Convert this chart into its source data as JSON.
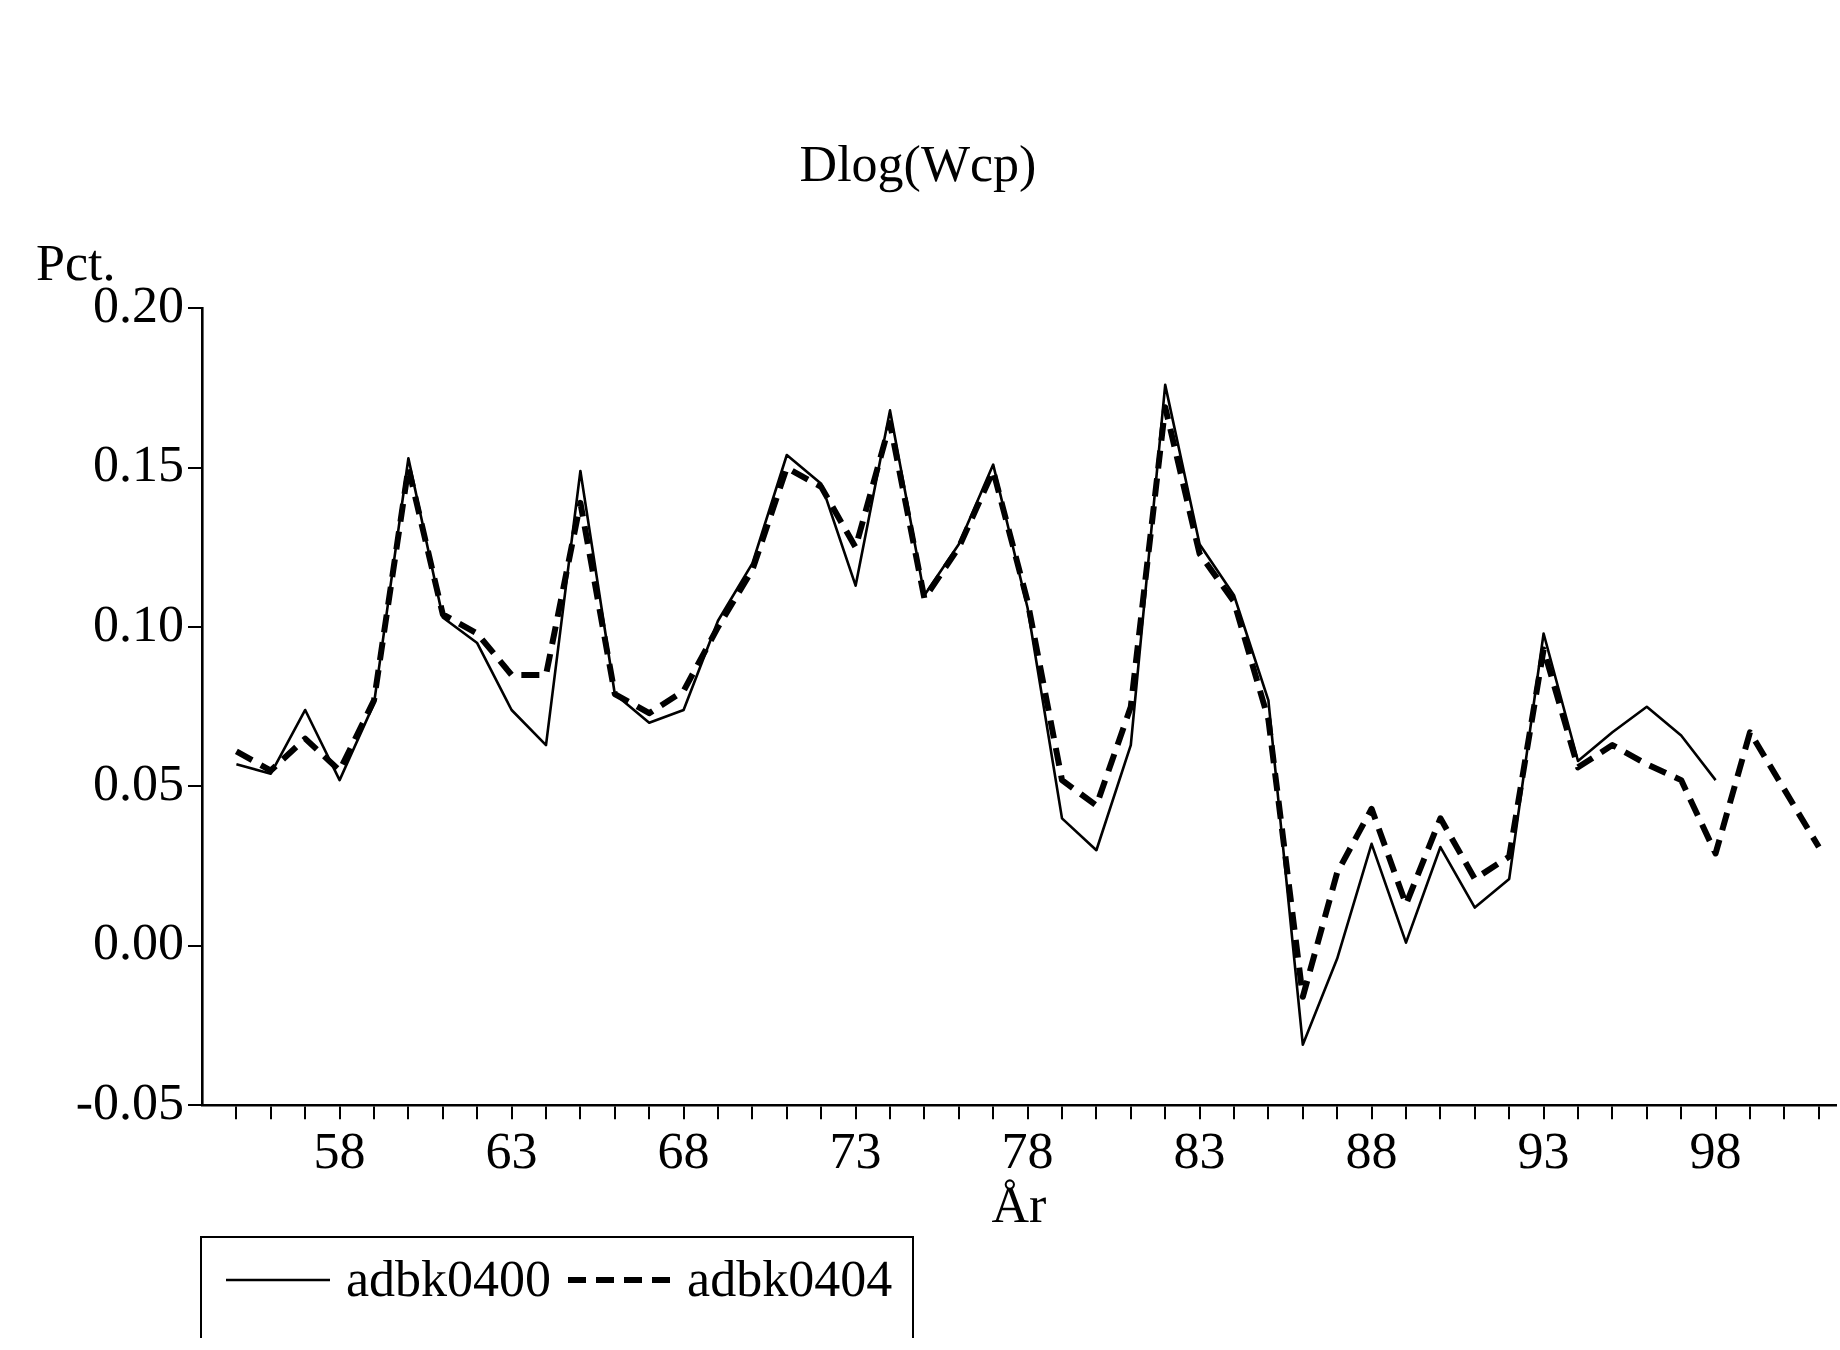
{
  "chart_data": {
    "type": "line",
    "title": "Dlog(Wcp)",
    "xlabel": "År",
    "ylabel": "Pct.",
    "x": [
      55,
      56,
      57,
      58,
      59,
      60,
      61,
      62,
      63,
      64,
      65,
      66,
      67,
      68,
      69,
      70,
      71,
      72,
      73,
      74,
      75,
      76,
      77,
      78,
      79,
      80,
      81,
      82,
      83,
      84,
      85,
      86,
      87,
      88,
      89,
      90,
      91,
      92,
      93,
      94,
      95,
      96,
      97,
      98,
      99,
      100,
      101
    ],
    "series": [
      {
        "name": "adbk0400",
        "color": "#000000",
        "line_style": "solid",
        "values": [
          0.057,
          0.054,
          0.074,
          0.052,
          0.076,
          0.153,
          0.103,
          0.095,
          0.074,
          0.063,
          0.149,
          0.079,
          0.07,
          0.074,
          0.102,
          0.12,
          0.154,
          0.145,
          0.113,
          0.168,
          0.11,
          0.126,
          0.151,
          0.106,
          0.04,
          0.03,
          0.063,
          0.176,
          0.126,
          0.11,
          0.077,
          -0.031,
          -0.004,
          0.032,
          0.001,
          0.031,
          0.012,
          0.021,
          0.098,
          0.058,
          0.067,
          0.075,
          0.066,
          0.052,
          null,
          null,
          null
        ]
      },
      {
        "name": "adbk0404",
        "color": "#000000",
        "line_style": "dashed",
        "values": [
          0.061,
          0.055,
          0.065,
          0.055,
          0.077,
          0.15,
          0.104,
          0.098,
          0.085,
          0.085,
          0.139,
          0.079,
          0.073,
          0.08,
          0.1,
          0.118,
          0.15,
          0.144,
          0.125,
          0.164,
          0.109,
          0.125,
          0.149,
          0.108,
          0.052,
          0.044,
          0.075,
          0.169,
          0.123,
          0.108,
          0.071,
          -0.016,
          0.023,
          0.043,
          0.013,
          0.04,
          0.021,
          0.028,
          0.093,
          0.056,
          0.063,
          0.057,
          0.052,
          0.029,
          0.067,
          0.049,
          0.031
        ]
      }
    ],
    "xlim": [
      54,
      101.5
    ],
    "xticks": [
      {
        "value": 55,
        "label": null
      },
      {
        "value": 56,
        "label": null
      },
      {
        "value": 57,
        "label": null
      },
      58,
      {
        "value": 59,
        "label": null
      },
      {
        "value": 60,
        "label": null
      },
      {
        "value": 61,
        "label": null
      },
      {
        "value": 62,
        "label": null
      },
      63,
      {
        "value": 64,
        "label": null
      },
      {
        "value": 65,
        "label": null
      },
      {
        "value": 66,
        "label": null
      },
      {
        "value": 67,
        "label": null
      },
      68,
      {
        "value": 69,
        "label": null
      },
      {
        "value": 70,
        "label": null
      },
      {
        "value": 71,
        "label": null
      },
      {
        "value": 72,
        "label": null
      },
      73,
      {
        "value": 74,
        "label": null
      },
      {
        "value": 75,
        "label": null
      },
      {
        "value": 76,
        "label": null
      },
      {
        "value": 77,
        "label": null
      },
      78,
      {
        "value": 79,
        "label": null
      },
      {
        "value": 80,
        "label": null
      },
      {
        "value": 81,
        "label": null
      },
      {
        "value": 82,
        "label": null
      },
      83,
      {
        "value": 84,
        "label": null
      },
      {
        "value": 85,
        "label": null
      },
      {
        "value": 86,
        "label": null
      },
      {
        "value": 87,
        "label": null
      },
      88,
      {
        "value": 89,
        "label": null
      },
      {
        "value": 90,
        "label": null
      },
      {
        "value": 91,
        "label": null
      },
      {
        "value": 92,
        "label": null
      },
      93,
      {
        "value": 94,
        "label": null
      },
      {
        "value": 95,
        "label": null
      },
      {
        "value": 96,
        "label": null
      },
      {
        "value": 97,
        "label": null
      },
      98,
      {
        "value": 99,
        "label": null
      },
      {
        "value": 100,
        "label": null
      },
      {
        "value": 101,
        "label": null
      }
    ],
    "ylim": [
      -0.05,
      0.2
    ],
    "yticks": [
      -0.05,
      {
        "value": 0,
        "label": "0.00"
      },
      {
        "value": 0.05,
        "label": "0.05"
      },
      {
        "value": 0.1,
        "label": "0.10"
      },
      {
        "value": 0.15,
        "label": "0.15"
      },
      {
        "value": 0.2,
        "label": "0.20"
      }
    ],
    "grid": false,
    "legend": "bottom left",
    "marker": "none"
  }
}
